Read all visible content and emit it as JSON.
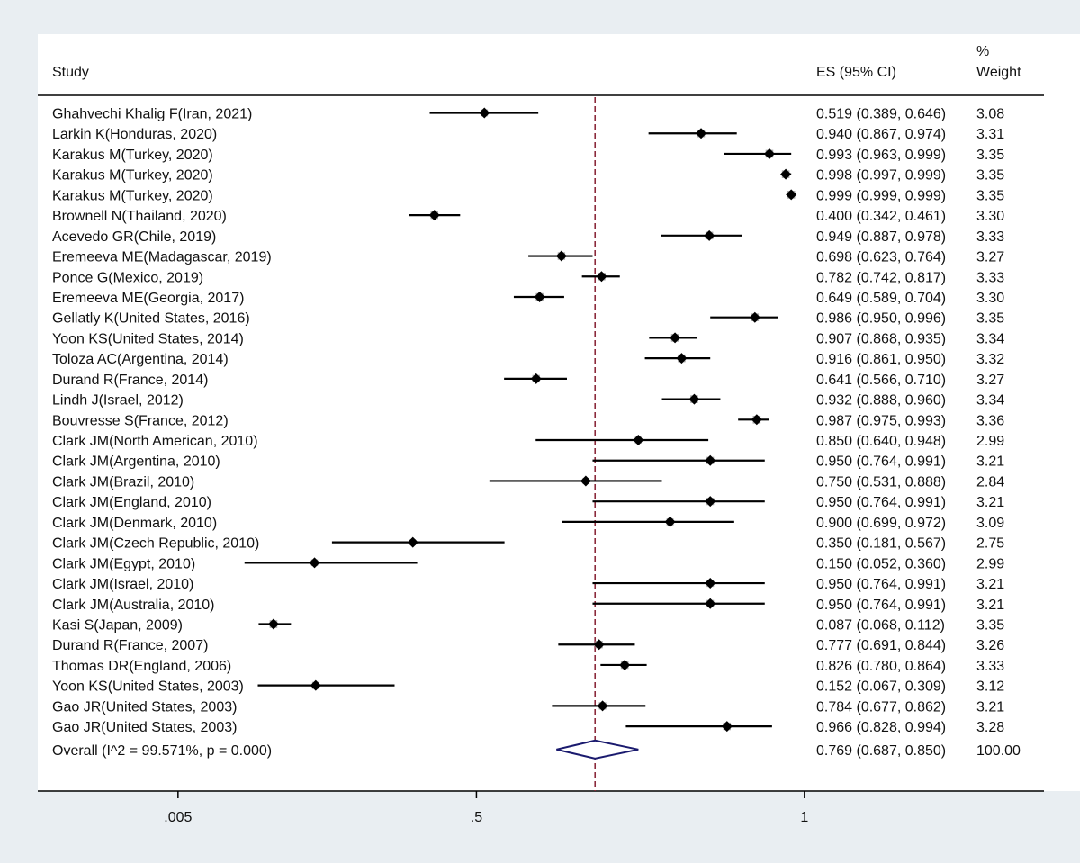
{
  "chart_data": {
    "type": "forest",
    "header": {
      "study": "Study",
      "es": "ES (95% CI)",
      "weight_line1": "%",
      "weight_line2": "Weight"
    },
    "x_axis": {
      "min": 0.005,
      "max": 1,
      "reference_line": 0.769,
      "ticks": [
        0.005,
        0.5,
        1
      ],
      "tick_labels": [
        ".005",
        ".5",
        "1"
      ]
    },
    "studies": [
      {
        "label": "Ghahvechi Khalig F(Iran, 2021)",
        "es": 0.519,
        "lo": 0.389,
        "hi": 0.646,
        "es_text": "0.519 (0.389, 0.646)",
        "weight": "3.08"
      },
      {
        "label": "Larkin K(Honduras, 2020)",
        "es": 0.94,
        "lo": 0.867,
        "hi": 0.974,
        "es_text": "0.940 (0.867, 0.974)",
        "weight": "3.31"
      },
      {
        "label": "Karakus M(Turkey, 2020)",
        "es": 0.993,
        "lo": 0.963,
        "hi": 0.999,
        "es_text": "0.993 (0.963, 0.999)",
        "weight": "3.35"
      },
      {
        "label": "Karakus M(Turkey, 2020)",
        "es": 0.998,
        "lo": 0.997,
        "hi": 0.999,
        "es_text": "0.998 (0.997, 0.999)",
        "weight": "3.35"
      },
      {
        "label": "Karakus M(Turkey, 2020)",
        "es": 0.999,
        "lo": 0.999,
        "hi": 0.999,
        "es_text": "0.999 (0.999, 0.999)",
        "weight": "3.35"
      },
      {
        "label": "Brownell N(Thailand, 2020)",
        "es": 0.4,
        "lo": 0.342,
        "hi": 0.461,
        "es_text": "0.400 (0.342, 0.461)",
        "weight": "3.30"
      },
      {
        "label": "Acevedo GR(Chile, 2019)",
        "es": 0.949,
        "lo": 0.887,
        "hi": 0.978,
        "es_text": "0.949 (0.887, 0.978)",
        "weight": "3.33"
      },
      {
        "label": "Eremeeva ME(Madagascar, 2019)",
        "es": 0.698,
        "lo": 0.623,
        "hi": 0.764,
        "es_text": "0.698 (0.623, 0.764)",
        "weight": "3.27"
      },
      {
        "label": "Ponce G(Mexico, 2019)",
        "es": 0.782,
        "lo": 0.742,
        "hi": 0.817,
        "es_text": "0.782 (0.742, 0.817)",
        "weight": "3.33"
      },
      {
        "label": "Eremeeva ME(Georgia, 2017)",
        "es": 0.649,
        "lo": 0.589,
        "hi": 0.704,
        "es_text": "0.649 (0.589, 0.704)",
        "weight": "3.30"
      },
      {
        "label": "Gellatly K(United States, 2016)",
        "es": 0.986,
        "lo": 0.95,
        "hi": 0.996,
        "es_text": "0.986 (0.950, 0.996)",
        "weight": "3.35"
      },
      {
        "label": "Yoon KS(United States, 2014)",
        "es": 0.907,
        "lo": 0.868,
        "hi": 0.935,
        "es_text": "0.907 (0.868, 0.935)",
        "weight": "3.34"
      },
      {
        "label": "Toloza AC(Argentina, 2014)",
        "es": 0.916,
        "lo": 0.861,
        "hi": 0.95,
        "es_text": "0.916 (0.861, 0.950)",
        "weight": "3.32"
      },
      {
        "label": "Durand R(France, 2014)",
        "es": 0.641,
        "lo": 0.566,
        "hi": 0.71,
        "es_text": "0.641 (0.566, 0.710)",
        "weight": "3.27"
      },
      {
        "label": "Lindh J(Israel, 2012)",
        "es": 0.932,
        "lo": 0.888,
        "hi": 0.96,
        "es_text": "0.932 (0.888, 0.960)",
        "weight": "3.34"
      },
      {
        "label": "Bouvresse S(France, 2012)",
        "es": 0.987,
        "lo": 0.975,
        "hi": 0.993,
        "es_text": "0.987 (0.975, 0.993)",
        "weight": "3.36"
      },
      {
        "label": "Clark JM(North American, 2010)",
        "es": 0.85,
        "lo": 0.64,
        "hi": 0.948,
        "es_text": "0.850 (0.640, 0.948)",
        "weight": "2.99"
      },
      {
        "label": "Clark JM(Argentina, 2010)",
        "es": 0.95,
        "lo": 0.764,
        "hi": 0.991,
        "es_text": "0.950 (0.764, 0.991)",
        "weight": "3.21"
      },
      {
        "label": "Clark JM(Brazil, 2010)",
        "es": 0.75,
        "lo": 0.531,
        "hi": 0.888,
        "es_text": "0.750 (0.531, 0.888)",
        "weight": "2.84"
      },
      {
        "label": "Clark JM(England, 2010)",
        "es": 0.95,
        "lo": 0.764,
        "hi": 0.991,
        "es_text": "0.950 (0.764, 0.991)",
        "weight": "3.21"
      },
      {
        "label": "Clark JM(Denmark, 2010)",
        "es": 0.9,
        "lo": 0.699,
        "hi": 0.972,
        "es_text": "0.900 (0.699, 0.972)",
        "weight": "3.09"
      },
      {
        "label": "Clark JM(Czech Republic, 2010)",
        "es": 0.35,
        "lo": 0.181,
        "hi": 0.567,
        "es_text": "0.350 (0.181, 0.567)",
        "weight": "2.75"
      },
      {
        "label": "Clark JM(Egypt, 2010)",
        "es": 0.15,
        "lo": 0.052,
        "hi": 0.36,
        "es_text": "0.150 (0.052, 0.360)",
        "weight": "2.99"
      },
      {
        "label": "Clark JM(Israel, 2010)",
        "es": 0.95,
        "lo": 0.764,
        "hi": 0.991,
        "es_text": "0.950 (0.764, 0.991)",
        "weight": "3.21"
      },
      {
        "label": "Clark JM(Australia, 2010)",
        "es": 0.95,
        "lo": 0.764,
        "hi": 0.991,
        "es_text": "0.950 (0.764, 0.991)",
        "weight": "3.21"
      },
      {
        "label": "Kasi S(Japan, 2009)",
        "es": 0.087,
        "lo": 0.068,
        "hi": 0.112,
        "es_text": "0.087 (0.068, 0.112)",
        "weight": "3.35"
      },
      {
        "label": "Durand R(France, 2007)",
        "es": 0.777,
        "lo": 0.691,
        "hi": 0.844,
        "es_text": "0.777 (0.691, 0.844)",
        "weight": "3.26"
      },
      {
        "label": "Thomas DR(England, 2006)",
        "es": 0.826,
        "lo": 0.78,
        "hi": 0.864,
        "es_text": "0.826 (0.780, 0.864)",
        "weight": "3.33"
      },
      {
        "label": "Yoon KS(United States, 2003)",
        "es": 0.152,
        "lo": 0.067,
        "hi": 0.309,
        "es_text": "0.152 (0.067, 0.309)",
        "weight": "3.12"
      },
      {
        "label": "Gao JR(United States, 2003)",
        "es": 0.784,
        "lo": 0.677,
        "hi": 0.862,
        "es_text": "0.784 (0.677, 0.862)",
        "weight": "3.21"
      },
      {
        "label": "Gao JR(United States, 2003)",
        "es": 0.966,
        "lo": 0.828,
        "hi": 0.994,
        "es_text": "0.966 (0.828, 0.994)",
        "weight": "3.28"
      }
    ],
    "overall": {
      "label": "Overall  (I^2 = 99.571%, p = 0.000)",
      "es": 0.769,
      "lo": 0.687,
      "hi": 0.85,
      "es_text": "0.769 (0.687, 0.850)",
      "weight": "100.00"
    },
    "colors": {
      "background": "#e9eef2",
      "panel": "#ffffff",
      "reference_line": "#8b2a3c",
      "diamond": "#1a1a6e",
      "marker": "#000000",
      "weight_box": "#a9a9a9"
    }
  }
}
